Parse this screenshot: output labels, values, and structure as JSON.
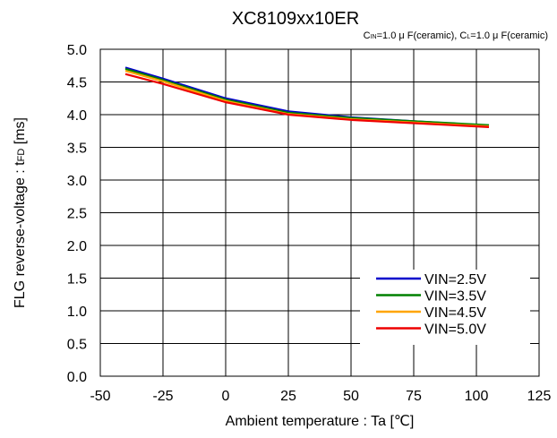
{
  "chart_data": {
    "type": "line",
    "title": "XC8109xx10ER",
    "subtitle": {
      "parts": [
        {
          "text": "C",
          "sub": false
        },
        {
          "text": "IN",
          "sub": true
        },
        {
          "text": "=1.0 μ F(ceramic),  C",
          "sub": false
        },
        {
          "text": "L",
          "sub": true
        },
        {
          "text": "=1.0 μ F(ceramic)",
          "sub": false
        }
      ]
    },
    "xlabel": "Ambient temperature : Ta [℃]",
    "ylabel": {
      "main": "FLG reverse-voltage : t",
      "sub": "FD",
      "unit": " [ms]"
    },
    "xlim": [
      -50,
      125
    ],
    "ylim": [
      0.0,
      5.0
    ],
    "xticks": [
      "-50",
      "-25",
      "0",
      "25",
      "50",
      "75",
      "100",
      "125"
    ],
    "yticks": [
      "0.0",
      "0.5",
      "1.0",
      "1.5",
      "2.0",
      "2.5",
      "3.0",
      "3.5",
      "4.0",
      "4.5",
      "5.0"
    ],
    "xtick_values": [
      -50,
      -25,
      0,
      25,
      50,
      75,
      100,
      125
    ],
    "ytick_values": [
      0.0,
      0.5,
      1.0,
      1.5,
      2.0,
      2.5,
      3.0,
      3.5,
      4.0,
      4.5,
      5.0
    ],
    "grid": true,
    "legend_position": "bottom-right",
    "x": [
      -40,
      -25,
      0,
      25,
      50,
      75,
      105
    ],
    "series": [
      {
        "name": "VIN=2.5V",
        "color": "#0000cc",
        "values": [
          4.72,
          4.55,
          4.25,
          4.05,
          3.96,
          3.9,
          3.83
        ]
      },
      {
        "name": "VIN=3.5V",
        "color": "#008000",
        "values": [
          4.7,
          4.53,
          4.23,
          4.03,
          3.95,
          3.9,
          3.84
        ]
      },
      {
        "name": "VIN=4.5V",
        "color": "#ffa500",
        "values": [
          4.67,
          4.51,
          4.21,
          4.01,
          3.93,
          3.88,
          3.82
        ]
      },
      {
        "name": "VIN=5.0V",
        "color": "#ee0000",
        "values": [
          4.62,
          4.47,
          4.19,
          4.0,
          3.92,
          3.87,
          3.81
        ]
      }
    ]
  }
}
